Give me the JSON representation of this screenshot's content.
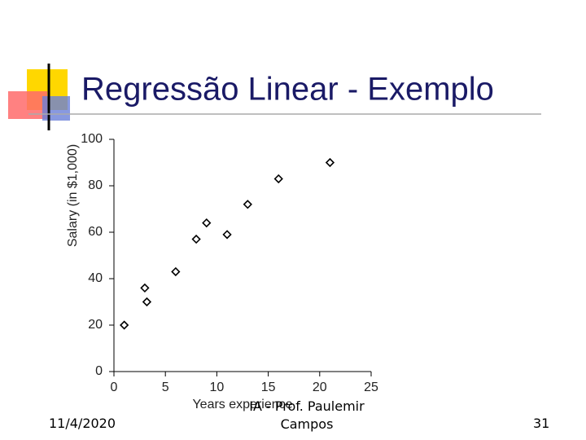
{
  "chart_data": {
    "type": "scatter",
    "title": "Regressão Linear - Exemplo",
    "x_label": "Years experience",
    "y_label": "Salary (in $1,000)",
    "x": [
      1,
      3,
      3.2,
      6,
      8,
      9,
      11,
      13,
      16,
      21
    ],
    "values": [
      20,
      36,
      30,
      43,
      57,
      64,
      59,
      72,
      83,
      90
    ],
    "color": "#000000",
    "xlim": [
      0,
      25
    ],
    "xticks": [
      0,
      5,
      10,
      15,
      20,
      25
    ],
    "ylim": [
      0,
      100
    ],
    "yticks": [
      0,
      20,
      40,
      60,
      80,
      100
    ],
    "grid": false
  },
  "footer": {
    "date": "11/4/2020",
    "center": "IA - Prof. Paulemir Campos",
    "page": "31"
  }
}
